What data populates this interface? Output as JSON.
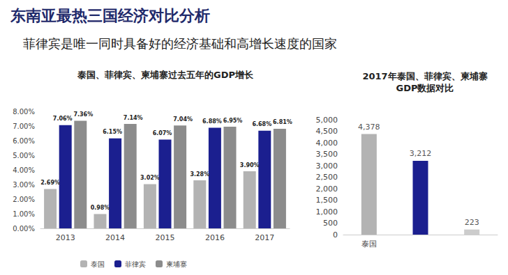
{
  "header": {
    "title": "东南亚最热三国经济对比分析",
    "subtitle": "菲律宾是唯一同时具备好的经济基础和高增长速度的国家"
  },
  "chart_data": [
    {
      "type": "bar",
      "title": "泰国、菲律宾、柬埔寨过去五年的GDP增长",
      "categories": [
        "2013",
        "2014",
        "2015",
        "2016",
        "2017"
      ],
      "series": [
        {
          "name": "泰国",
          "color": "#b3b3b3",
          "values": [
            2.69,
            0.98,
            3.02,
            3.28,
            3.9
          ],
          "value_labels": [
            "2.69%",
            "0.98%",
            "3.02%",
            "3.28%",
            "3.90%"
          ]
        },
        {
          "name": "菲律宾",
          "color": "#1b1f8f",
          "values": [
            7.06,
            6.15,
            6.07,
            6.88,
            6.68
          ],
          "value_labels": [
            "7.06%",
            "6.15%",
            "6.07%",
            "6.88%",
            "6.68%"
          ]
        },
        {
          "name": "柬埔寨",
          "color": "#8c8c8c",
          "values": [
            7.36,
            7.14,
            7.04,
            6.95,
            6.81
          ],
          "value_labels": [
            "7.36%",
            "7.14%",
            "7.04%",
            "6.95%",
            "6.81%"
          ]
        }
      ],
      "ylim": [
        0,
        8
      ],
      "yticks": [
        {
          "value": 0,
          "label": "0.00%"
        },
        {
          "value": 1,
          "label": "1.00%"
        },
        {
          "value": 2,
          "label": "2.00%"
        },
        {
          "value": 3,
          "label": "3.00%"
        },
        {
          "value": 4,
          "label": "4.00%"
        },
        {
          "value": 5,
          "label": "5.00%"
        },
        {
          "value": 6,
          "label": "6.00%"
        },
        {
          "value": 7,
          "label": "7.00%"
        },
        {
          "value": 8,
          "label": "8.00%"
        }
      ],
      "grid": false,
      "legend": "bottom",
      "data_labels": true
    },
    {
      "type": "bar",
      "title": "2017年泰国、菲律宾、柬埔寨GDP数据对比",
      "categories": [
        "泰国",
        null,
        null
      ],
      "values": [
        4378,
        3212,
        223
      ],
      "value_labels": [
        "4,378",
        "3,212",
        "223"
      ],
      "colors": [
        "#b3b3b3",
        "#1b1f8f",
        "#cccccc"
      ],
      "ylim": [
        0,
        5000
      ],
      "yticks": [
        0,
        500,
        {
          "value": 1000,
          "label": "1,000"
        },
        {
          "value": 1500,
          "label": "1,500"
        },
        {
          "value": 2000,
          "label": "2,000"
        },
        {
          "value": 2500,
          "label": "2,500"
        },
        {
          "value": 3000,
          "label": "3,000"
        },
        {
          "value": 3500,
          "label": "3,500"
        },
        {
          "value": 4000,
          "label": "4,000"
        },
        {
          "value": 4500,
          "label": "4,500"
        },
        {
          "value": 5000,
          "label": "5,000"
        }
      ],
      "grid": false,
      "data_labels": true
    }
  ]
}
